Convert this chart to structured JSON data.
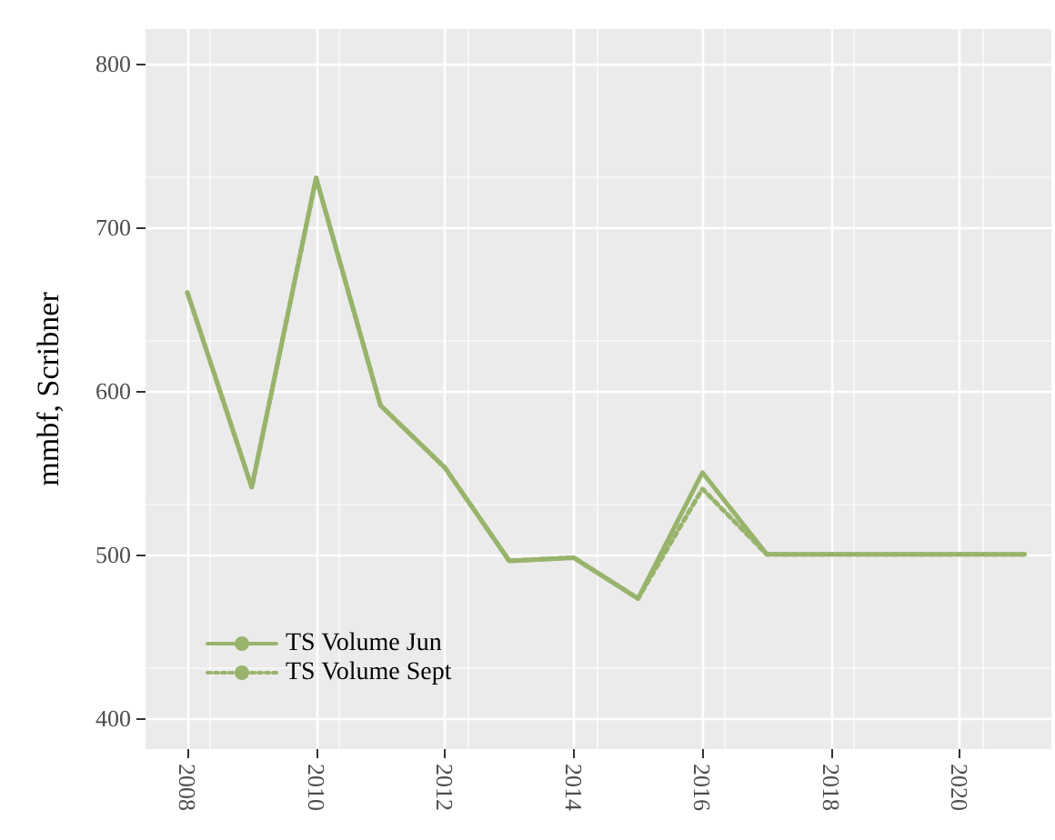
{
  "chart_data": {
    "type": "line",
    "ylabel": "mmbf, Scribner",
    "x": [
      2008,
      2009,
      2010,
      2011,
      2012,
      2013,
      2014,
      2015,
      2016,
      2017,
      2018,
      2019,
      2020,
      2021
    ],
    "series": [
      {
        "name": "TS Volume Jun",
        "color": "#98b46c",
        "line_style": "solid",
        "values": [
          660,
          541,
          730,
          591,
          553,
          496,
          498,
          473,
          550,
          500,
          500,
          500,
          500,
          500
        ]
      },
      {
        "name": "TS Volume Sept",
        "color": "#98b46c",
        "line_style": "dotted",
        "values": [
          660,
          541,
          730,
          591,
          553,
          496,
          498,
          473,
          540,
          500,
          500,
          500,
          500,
          500
        ]
      }
    ],
    "xlim": [
      2007.35,
      2021.42
    ],
    "xticks": [
      2008,
      2010,
      2012,
      2014,
      2016,
      2018,
      2020
    ],
    "ylim": [
      381,
      821
    ],
    "yticks": [
      400,
      500,
      600,
      700,
      800
    ],
    "grid": true,
    "legend": "bottom left",
    "marker": "none"
  }
}
